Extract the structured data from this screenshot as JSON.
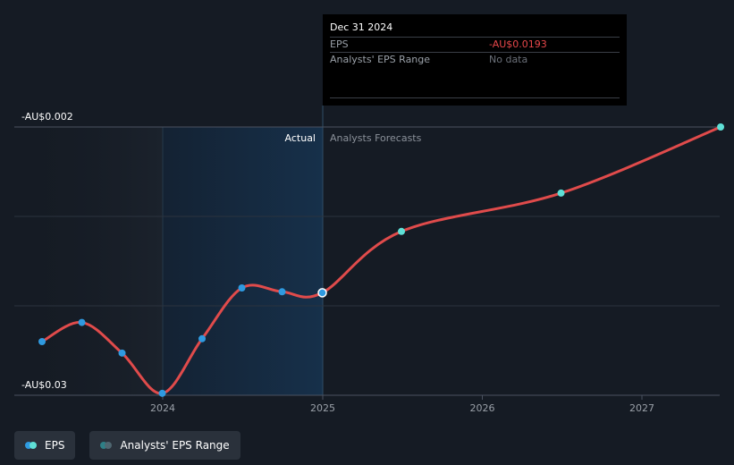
{
  "chart_data": {
    "type": "line",
    "x_ticks": [
      "2024",
      "2025",
      "2026",
      "2027"
    ],
    "y_labels": {
      "top": "-AU$0.002",
      "bottom": "-AU$0.03"
    },
    "ylim": [
      -0.03,
      -0.002
    ],
    "divider_labels": {
      "actual": "Actual",
      "forecast": "Analysts Forecasts"
    },
    "series": [
      {
        "name": "EPS",
        "color": "#e04b4b",
        "points": [
          {
            "date": "2023-03-31",
            "value": -0.0244,
            "kind": "actual"
          },
          {
            "date": "2023-06-30",
            "value": -0.0224,
            "kind": "actual"
          },
          {
            "date": "2023-09-30",
            "value": -0.0256,
            "kind": "actual"
          },
          {
            "date": "2023-12-31",
            "value": -0.0298,
            "kind": "actual"
          },
          {
            "date": "2024-03-31",
            "value": -0.0241,
            "kind": "actual"
          },
          {
            "date": "2024-06-30",
            "value": -0.0188,
            "kind": "actual"
          },
          {
            "date": "2024-09-30",
            "value": -0.0192,
            "kind": "actual"
          },
          {
            "date": "2024-12-31",
            "value": -0.0193,
            "kind": "actual"
          },
          {
            "date": "2025-06-30",
            "value": -0.0129,
            "kind": "forecast"
          },
          {
            "date": "2026-06-30",
            "value": -0.0089,
            "kind": "forecast"
          },
          {
            "date": "2027-06-30",
            "value": -0.002,
            "kind": "forecast"
          }
        ]
      }
    ],
    "grid": true,
    "legend_position": "bottom-left"
  },
  "tooltip": {
    "date": "Dec 31 2024",
    "rows": [
      {
        "label": "EPS",
        "value": "-AU$0.0193"
      },
      {
        "label": "Analysts' EPS Range",
        "value": "No data"
      }
    ]
  },
  "legend": {
    "items": [
      {
        "label": "EPS",
        "colors": [
          "#2f9ae0",
          "#5fe0d6"
        ]
      },
      {
        "label": "Analysts' EPS Range",
        "colors": [
          "#2e7f86",
          "#4f6670"
        ]
      }
    ]
  },
  "colors": {
    "background": "#151b24",
    "actual_marker": "#2f9ae0",
    "forecast_marker": "#5fe0d6",
    "line": "#e04b4b"
  }
}
